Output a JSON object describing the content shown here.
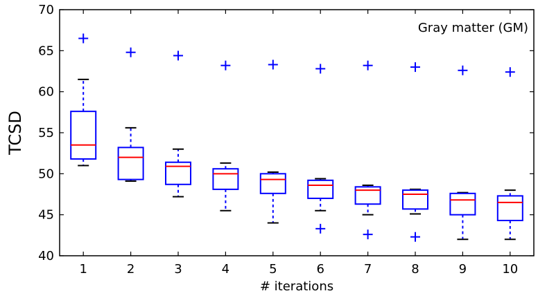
{
  "chart_data": {
    "type": "box",
    "title": "",
    "annotation": "Gray matter (GM)",
    "xlabel": "# iterations",
    "ylabel": "TCSD",
    "categories": [
      "1",
      "2",
      "3",
      "4",
      "5",
      "6",
      "7",
      "8",
      "9",
      "10"
    ],
    "ylim": [
      40,
      70
    ],
    "yticks": [
      "40",
      "45",
      "50",
      "55",
      "60",
      "65",
      "70"
    ],
    "grid": false,
    "box_color": "#0000ff",
    "median_color": "#ff0000",
    "boxes": [
      {
        "category": "1",
        "whisker_low": 51.0,
        "q1": 51.8,
        "median": 53.5,
        "q3": 57.6,
        "whisker_high": 61.5,
        "outliers": [
          66.5
        ]
      },
      {
        "category": "2",
        "whisker_low": 49.1,
        "q1": 49.3,
        "median": 52.0,
        "q3": 53.2,
        "whisker_high": 55.6,
        "outliers": [
          64.8
        ]
      },
      {
        "category": "3",
        "whisker_low": 47.2,
        "q1": 48.7,
        "median": 50.9,
        "q3": 51.4,
        "whisker_high": 53.0,
        "outliers": [
          64.4
        ]
      },
      {
        "category": "4",
        "whisker_low": 45.5,
        "q1": 48.1,
        "median": 50.0,
        "q3": 50.6,
        "whisker_high": 51.3,
        "outliers": [
          63.2
        ]
      },
      {
        "category": "5",
        "whisker_low": 44.0,
        "q1": 47.6,
        "median": 49.3,
        "q3": 50.0,
        "whisker_high": 50.2,
        "outliers": [
          63.3
        ]
      },
      {
        "category": "6",
        "whisker_low": 45.5,
        "q1": 47.0,
        "median": 48.6,
        "q3": 49.2,
        "whisker_high": 49.4,
        "outliers": [
          62.8,
          43.3
        ]
      },
      {
        "category": "7",
        "whisker_low": 45.0,
        "q1": 46.3,
        "median": 48.0,
        "q3": 48.4,
        "whisker_high": 48.6,
        "outliers": [
          63.2,
          42.6
        ]
      },
      {
        "category": "8",
        "whisker_low": 45.1,
        "q1": 45.7,
        "median": 47.5,
        "q3": 48.0,
        "whisker_high": 48.1,
        "outliers": [
          63.0,
          42.3
        ]
      },
      {
        "category": "9",
        "whisker_low": 42.0,
        "q1": 45.0,
        "median": 46.8,
        "q3": 47.6,
        "whisker_high": 47.7,
        "outliers": [
          62.6
        ]
      },
      {
        "category": "10",
        "whisker_low": 42.0,
        "q1": 44.3,
        "median": 46.5,
        "q3": 47.3,
        "whisker_high": 48.0,
        "outliers": [
          62.4
        ]
      }
    ]
  }
}
